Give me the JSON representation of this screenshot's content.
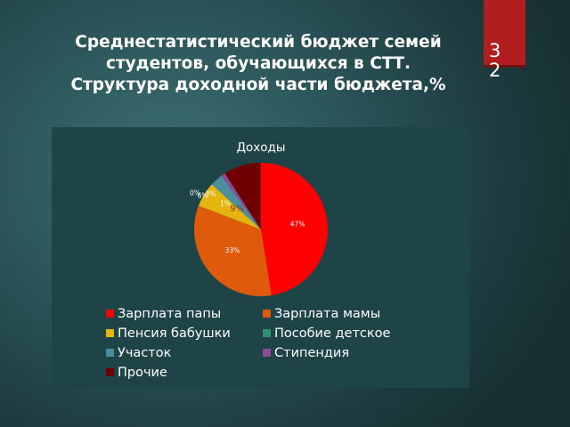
{
  "slide": {
    "title_lines": [
      "Среднестатистический бюджет семей",
      "студентов, обучающихся в СТТ.",
      "Структура доходной части бюджета,%"
    ],
    "page_number": "32",
    "tab_color": "#b01e1f"
  },
  "chart_data": {
    "type": "pie",
    "title": "Доходы",
    "categories": [
      "Зарплата папы",
      "Зарплата мамы",
      "Пенсия бабушки",
      "Пособие детское",
      "Участок",
      "Стипендия",
      "Прочие"
    ],
    "values": [
      47,
      33,
      6,
      0,
      3,
      1,
      9
    ],
    "labels": [
      "47%",
      "33%",
      "6%",
      "0%",
      "3%",
      "1%",
      "9%"
    ],
    "colors": [
      "#ff0000",
      "#e05a0c",
      "#e3b50e",
      "#2f9171",
      "#4a8f9e",
      "#8a4c96",
      "#6e0000"
    ],
    "legend_position": "bottom"
  }
}
